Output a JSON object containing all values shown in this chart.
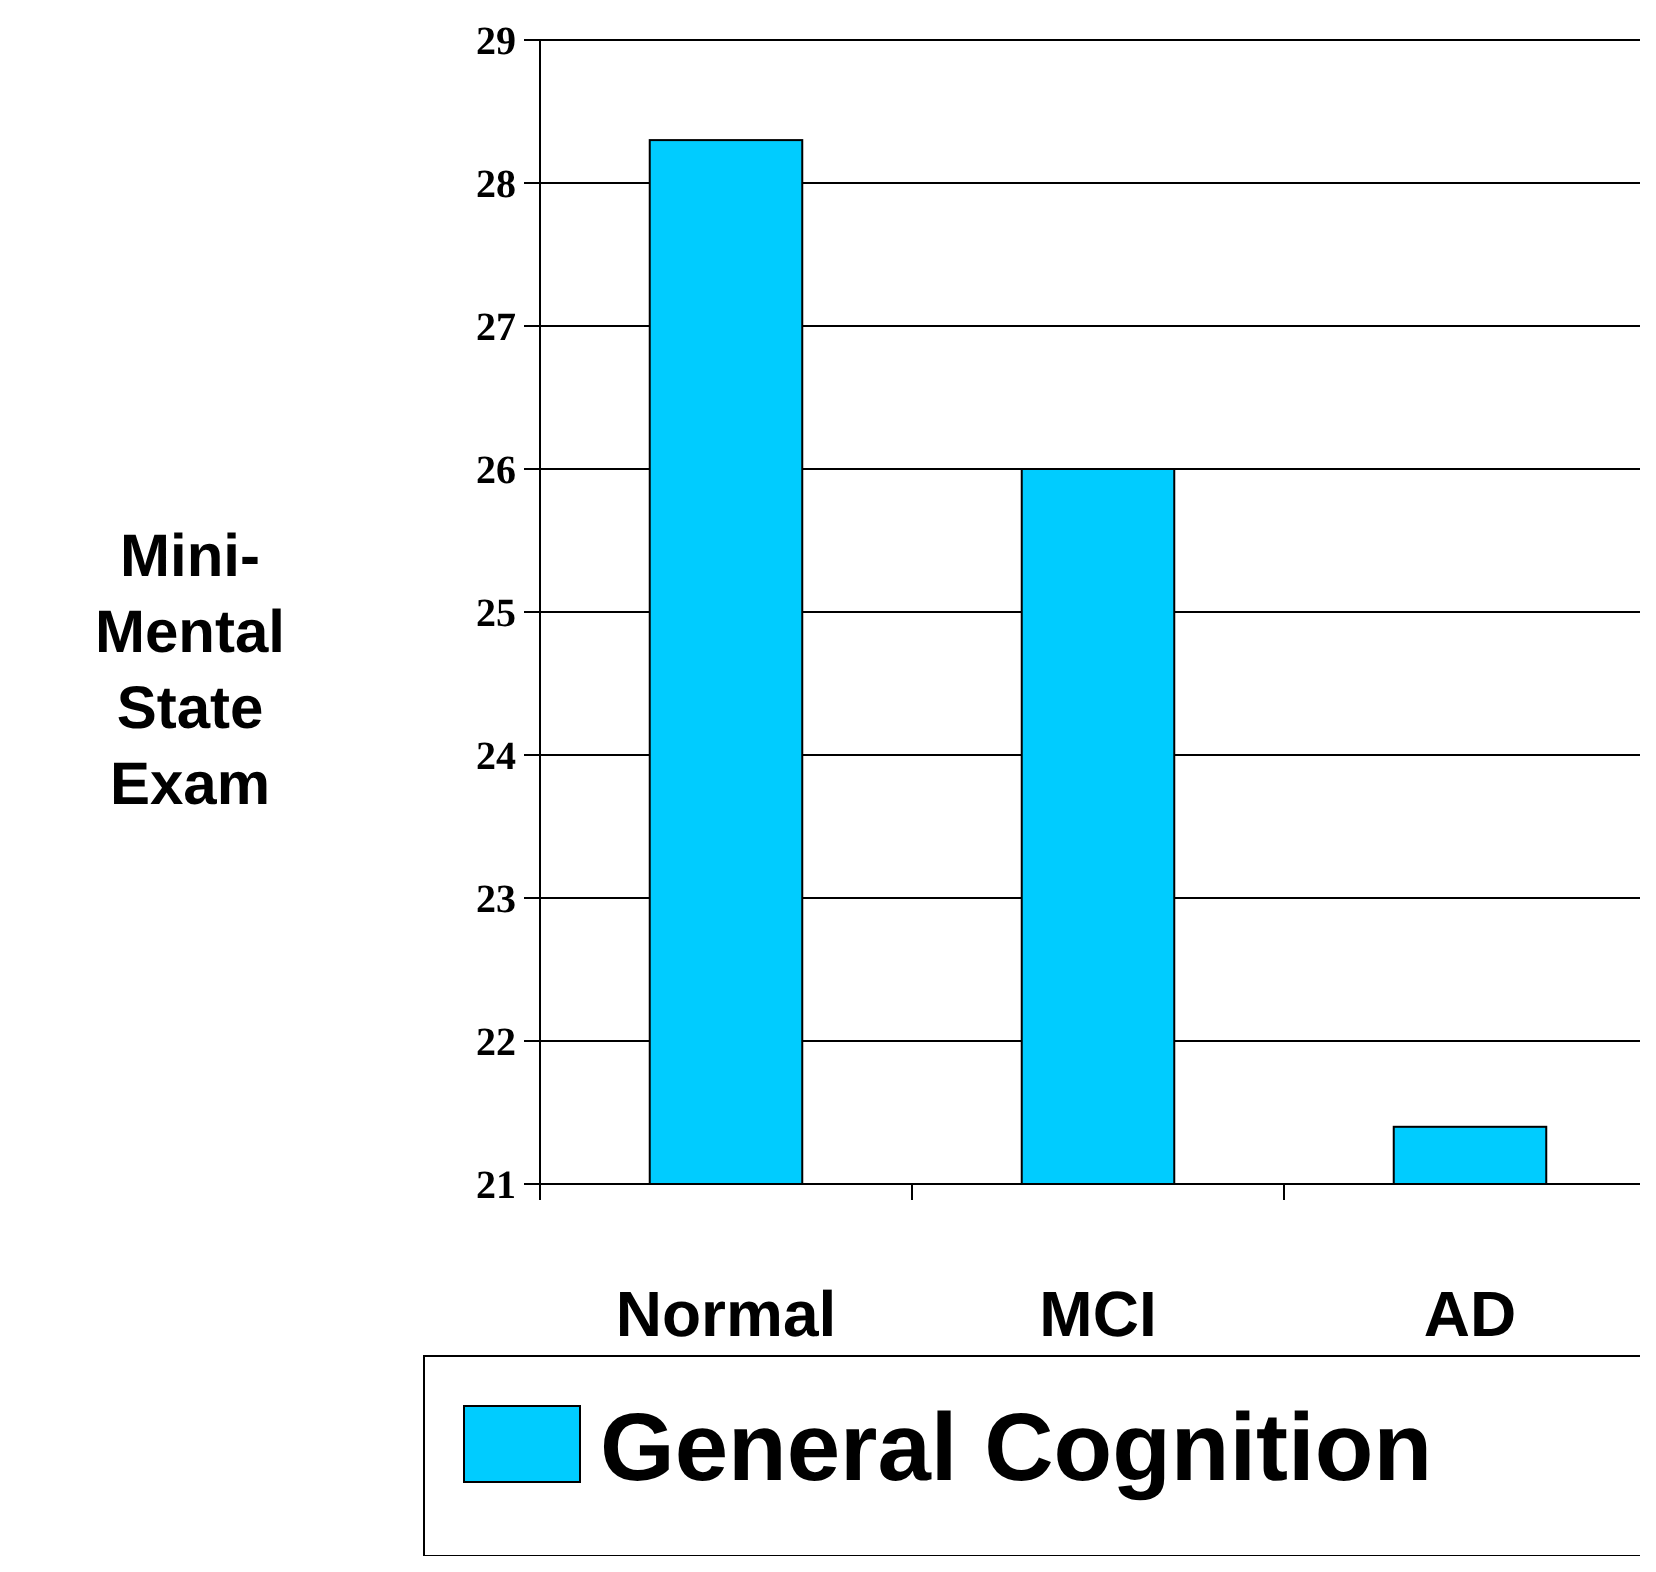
{
  "chart_data": {
    "type": "bar",
    "ylabel": "Mini-Mental State Exam",
    "categories": [
      "Normal",
      "MCI",
      "AD"
    ],
    "series": [
      {
        "name": "General Cognition",
        "color": "#00ccff",
        "values": [
          28.3,
          26.0,
          21.4
        ]
      }
    ],
    "ylim": [
      21,
      29
    ],
    "yticks": [
      21,
      22,
      23,
      24,
      25,
      26,
      27,
      28,
      29
    ],
    "grid": "y",
    "legend": "bottom"
  }
}
